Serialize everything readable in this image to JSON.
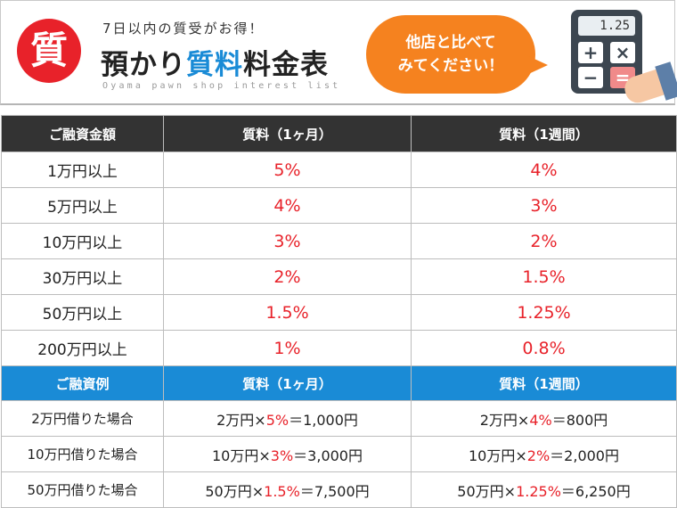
{
  "header": {
    "badge": "質",
    "subtitle": "7日以内の質受がお得！",
    "title_part1": "預かり",
    "title_blue": "質料",
    "title_part2": "料金表",
    "english": "Oyama pawn shop interest list",
    "bubble_line1": "他店と比べて",
    "bubble_line2": "みてください！",
    "calc_display": "1.25",
    "calc_keys": [
      "+",
      "×",
      "−",
      "="
    ]
  },
  "rates_table": {
    "headers": [
      "ご融資金額",
      "質料（1ヶ月）",
      "質料（1週間）"
    ],
    "rows": [
      {
        "amount": "1万円以上",
        "monthly": "5%",
        "weekly": "4%"
      },
      {
        "amount": "5万円以上",
        "monthly": "4%",
        "weekly": "3%"
      },
      {
        "amount": "10万円以上",
        "monthly": "3%",
        "weekly": "2%"
      },
      {
        "amount": "30万円以上",
        "monthly": "2%",
        "weekly": "1.5%"
      },
      {
        "amount": "50万円以上",
        "monthly": "1.5%",
        "weekly": "1.25%"
      },
      {
        "amount": "200万円以上",
        "monthly": "1%",
        "weekly": "0.8%"
      }
    ]
  },
  "examples_table": {
    "headers": [
      "ご融資例",
      "質料（1ヶ月）",
      "質料（1週間）"
    ],
    "rows": [
      {
        "label": "2万円借りた場合",
        "m_base": "2万円×",
        "m_rate": "5%",
        "m_result": "＝1,000円",
        "w_base": "2万円×",
        "w_rate": "4%",
        "w_result": "＝800円"
      },
      {
        "label": "10万円借りた場合",
        "m_base": "10万円×",
        "m_rate": "3%",
        "m_result": "＝3,000円",
        "w_base": "10万円×",
        "w_rate": "2%",
        "w_result": "＝2,000円"
      },
      {
        "label": "50万円借りた場合",
        "m_base": "50万円×",
        "m_rate": "1.5%",
        "m_result": "＝7,500円",
        "w_base": "50万円×",
        "w_rate": "1.25%",
        "w_result": "＝6,250円"
      }
    ]
  },
  "colors": {
    "accent_red": "#e8222a",
    "accent_blue": "#1a8bd6",
    "bubble_orange": "#f5821f",
    "header_dark": "#333333"
  }
}
